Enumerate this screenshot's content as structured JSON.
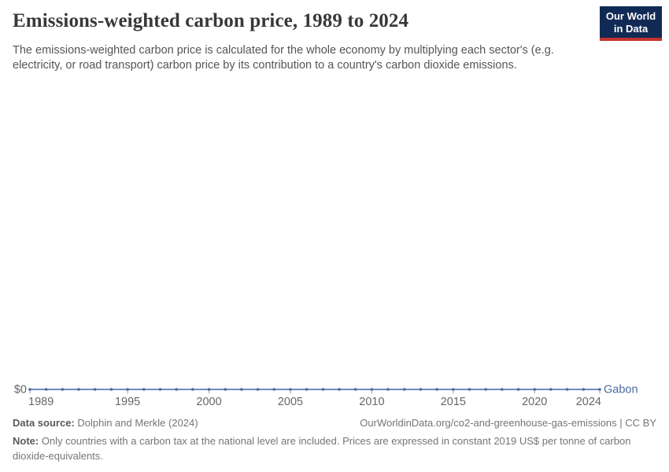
{
  "header": {
    "title": "Emissions-weighted carbon price, 1989 to 2024",
    "subtitle": "The emissions-weighted carbon price is calculated for the whole economy by multiplying each sector's (e.g. electricity, or road transport) carbon price by its contribution to a country's carbon dioxide emissions.",
    "logo": {
      "line1": "Our World",
      "line2": "in Data"
    }
  },
  "chart_data": {
    "type": "line",
    "title": "Emissions-weighted carbon price, 1989 to 2024",
    "x": [
      1989,
      1990,
      1991,
      1992,
      1993,
      1994,
      1995,
      1996,
      1997,
      1998,
      1999,
      2000,
      2001,
      2002,
      2003,
      2004,
      2005,
      2006,
      2007,
      2008,
      2009,
      2010,
      2011,
      2012,
      2013,
      2014,
      2015,
      2016,
      2017,
      2018,
      2019,
      2020,
      2021,
      2022,
      2023,
      2024
    ],
    "series": [
      {
        "name": "Gabon",
        "values": [
          0,
          0,
          0,
          0,
          0,
          0,
          0,
          0,
          0,
          0,
          0,
          0,
          0,
          0,
          0,
          0,
          0,
          0,
          0,
          0,
          0,
          0,
          0,
          0,
          0,
          0,
          0,
          0,
          0,
          0,
          0,
          0,
          0,
          0,
          0,
          0
        ],
        "color": "#4c6a9c"
      }
    ],
    "x_ticks": [
      1989,
      1995,
      2000,
      2005,
      2010,
      2015,
      2020,
      2024
    ],
    "y_axis_label": "$0",
    "xlabel": "",
    "ylabel": "",
    "ylim": [
      0,
      0
    ],
    "grid": false,
    "legend_position": "end-of-line"
  },
  "footer": {
    "datasource_label": "Data source:",
    "datasource_value": " Dolphin and Merkle (2024)",
    "link": "OurWorldinData.org/co2-and-greenhouse-gas-emissions | CC BY",
    "note_label": "Note:",
    "note_value": " Only countries with a carbon tax at the national level are included. Prices are expressed in constant 2019 US$ per tonne of carbon dioxide-equivalents."
  },
  "colors": {
    "series_blue": "#4c6a9c",
    "line_blue": "#5b7db3",
    "tick_label": "#666666",
    "tick_mark": "#a8b4c4",
    "title_text": "#383838",
    "subtitle_text": "#555555",
    "footer_text": "#757575",
    "logo_navy": "#112a55",
    "logo_red": "#c4342e"
  }
}
